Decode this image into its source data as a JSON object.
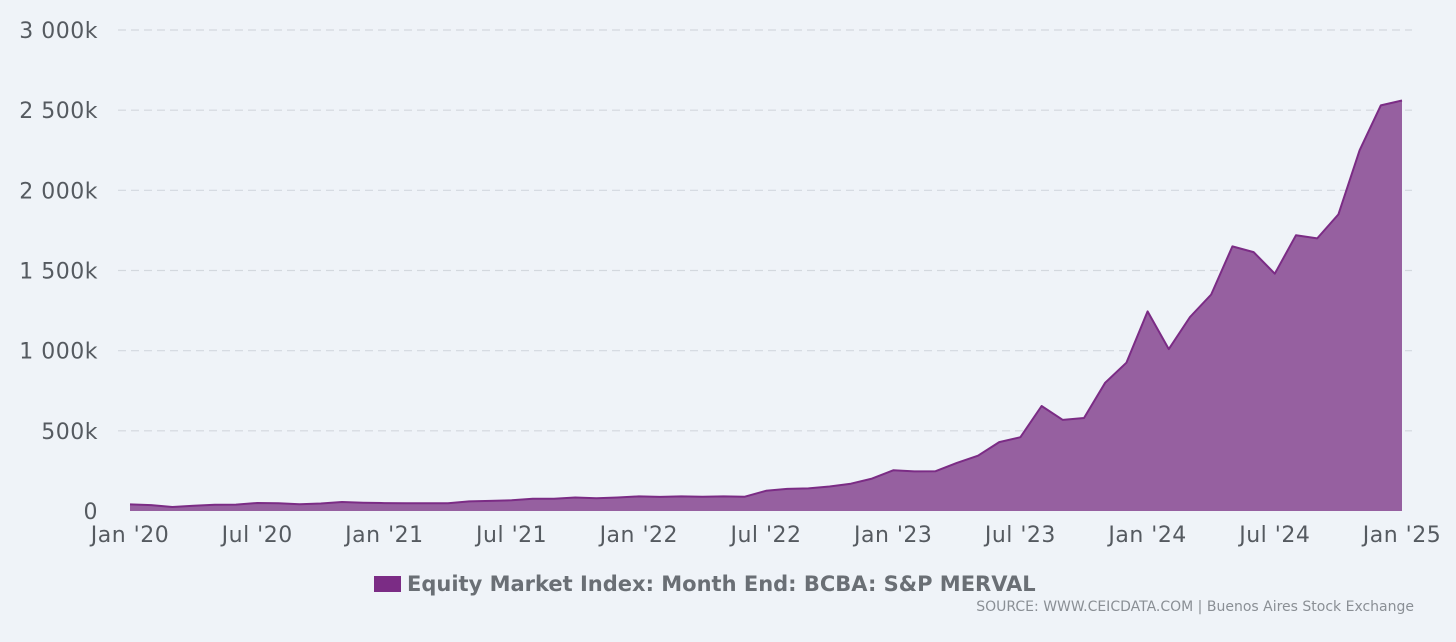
{
  "chart_data": {
    "type": "area",
    "y_ticks": [
      "3 000k",
      "2 500k",
      "2 000k",
      "1 500k",
      "1 000k",
      "500k",
      "0"
    ],
    "y_tick_values": [
      3000000,
      2500000,
      2000000,
      1500000,
      1000000,
      500000,
      0
    ],
    "ylim": [
      0,
      3000000
    ],
    "x_ticks": [
      "Jan '20",
      "Jul '20",
      "Jan '21",
      "Jul '21",
      "Jan '22",
      "Jul '22",
      "Jan '23",
      "Jul '23",
      "Jan '24",
      "Jul '24",
      "Jan '25"
    ],
    "grid": true,
    "legend_position": "bottom-center",
    "series": [
      {
        "name": "Equity Market Index: Month End: BCBA: S&P MERVAL",
        "color": "#7b2c85",
        "fill": "#9660a0",
        "x": [
          "2020-01",
          "2020-02",
          "2020-03",
          "2020-04",
          "2020-05",
          "2020-06",
          "2020-07",
          "2020-08",
          "2020-09",
          "2020-10",
          "2020-11",
          "2020-12",
          "2021-01",
          "2021-02",
          "2021-03",
          "2021-04",
          "2021-05",
          "2021-06",
          "2021-07",
          "2021-08",
          "2021-09",
          "2021-10",
          "2021-11",
          "2021-12",
          "2022-01",
          "2022-02",
          "2022-03",
          "2022-04",
          "2022-05",
          "2022-06",
          "2022-07",
          "2022-08",
          "2022-09",
          "2022-10",
          "2022-11",
          "2022-12",
          "2023-01",
          "2023-02",
          "2023-03",
          "2023-04",
          "2023-05",
          "2023-06",
          "2023-07",
          "2023-08",
          "2023-09",
          "2023-10",
          "2023-11",
          "2023-12",
          "2024-01",
          "2024-02",
          "2024-03",
          "2024-04",
          "2024-05",
          "2024-06",
          "2024-07",
          "2024-08",
          "2024-09",
          "2024-10",
          "2024-11",
          "2024-12",
          "2025-01"
        ],
        "values": [
          41000,
          37000,
          25000,
          33000,
          39000,
          40000,
          50000,
          48000,
          42000,
          47000,
          56000,
          52000,
          49000,
          48000,
          48000,
          48000,
          60000,
          63000,
          67000,
          76000,
          77000,
          84000,
          80000,
          84000,
          91000,
          88000,
          91000,
          89000,
          91000,
          89000,
          126000,
          138000,
          141000,
          153000,
          170000,
          202000,
          254000,
          247000,
          248000,
          300000,
          345000,
          430000,
          460000,
          655000,
          568000,
          580000,
          800000,
          925000,
          1245000,
          1010000,
          1210000,
          1350000,
          1650000,
          1615000,
          1480000,
          1720000,
          1700000,
          1850000,
          2250000,
          2530000,
          2560000
        ]
      }
    ],
    "source": "SOURCE: WWW.CEICDATA.COM | Buenos Aires Stock Exchange"
  }
}
